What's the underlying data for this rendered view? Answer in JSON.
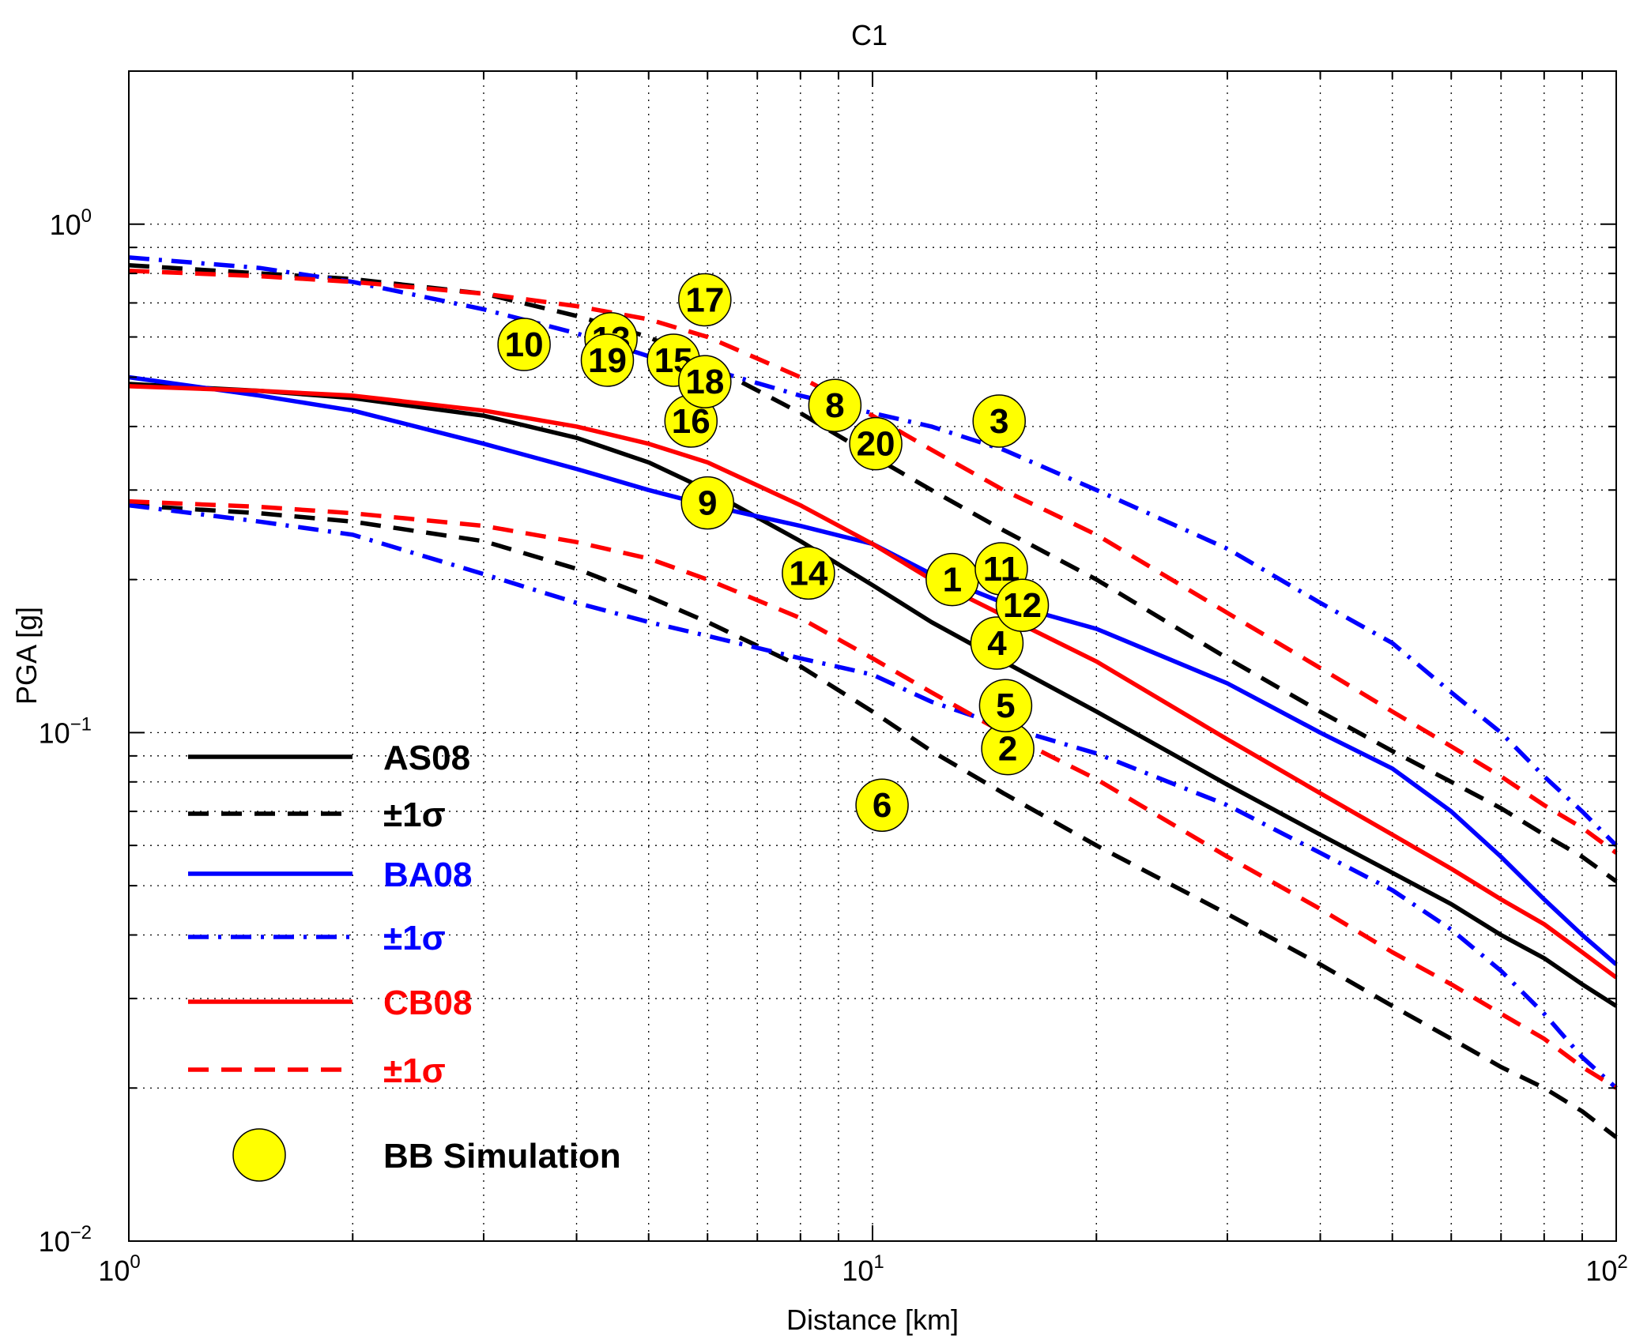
{
  "chart_data": {
    "type": "line",
    "title": "C1",
    "xlabel": "Distance [km]",
    "ylabel": "PGA [g]",
    "xscale": "log",
    "yscale": "log",
    "xlim": [
      1,
      100
    ],
    "ylim": [
      0.01,
      2
    ],
    "grid": true,
    "legend_position": "bottom-left",
    "x_tick_labels": [
      {
        "value": 1,
        "base": "10",
        "exp": "0"
      },
      {
        "value": 10,
        "base": "10",
        "exp": "1"
      },
      {
        "value": 100,
        "base": "10",
        "exp": "2"
      }
    ],
    "y_tick_labels": [
      {
        "value": 0.01,
        "base": "10",
        "exp": "−2"
      },
      {
        "value": 0.1,
        "base": "10",
        "exp": "−1"
      },
      {
        "value": 1,
        "base": "10",
        "exp": "0"
      }
    ],
    "x": [
      1,
      1.5,
      2,
      3,
      4,
      5,
      6,
      8,
      10,
      12,
      15,
      20,
      30,
      40,
      50,
      60,
      70,
      80,
      90,
      100
    ],
    "series": [
      {
        "name": "AS08",
        "color": "#000000",
        "style": "solid",
        "values": [
          0.485,
          0.47,
          0.455,
          0.42,
          0.38,
          0.34,
          0.3,
          0.238,
          0.195,
          0.165,
          0.138,
          0.11,
          0.079,
          0.063,
          0.053,
          0.046,
          0.04,
          0.036,
          0.032,
          0.029
        ]
      },
      {
        "name": "±1σ",
        "color": "#000000",
        "style": "dashed",
        "values": [
          0.83,
          0.8,
          0.78,
          0.73,
          0.66,
          0.6,
          0.53,
          0.425,
          0.35,
          0.3,
          0.25,
          0.2,
          0.14,
          0.11,
          0.092,
          0.08,
          0.071,
          0.063,
          0.057,
          0.051
        ]
      },
      {
        "name": "±1σ",
        "color": "#000000",
        "style": "dashed",
        "values": [
          0.28,
          0.27,
          0.26,
          0.238,
          0.21,
          0.185,
          0.165,
          0.135,
          0.11,
          0.092,
          0.076,
          0.06,
          0.044,
          0.035,
          0.029,
          0.025,
          0.022,
          0.02,
          0.018,
          0.016
        ]
      },
      {
        "name": "BA08",
        "color": "#0000ff",
        "style": "solid",
        "values": [
          0.5,
          0.46,
          0.43,
          0.37,
          0.33,
          0.3,
          0.28,
          0.255,
          0.235,
          0.205,
          0.18,
          0.16,
          0.125,
          0.1,
          0.085,
          0.07,
          0.057,
          0.047,
          0.04,
          0.035
        ]
      },
      {
        "name": "±1σ",
        "color": "#0000ff",
        "style": "dashdot",
        "values": [
          0.86,
          0.82,
          0.77,
          0.68,
          0.61,
          0.55,
          0.52,
          0.46,
          0.425,
          0.4,
          0.36,
          0.3,
          0.23,
          0.18,
          0.15,
          0.12,
          0.1,
          0.082,
          0.07,
          0.06
        ]
      },
      {
        "name": "±1σ",
        "color": "#0000ff",
        "style": "dashdot",
        "values": [
          0.28,
          0.26,
          0.245,
          0.205,
          0.18,
          0.165,
          0.155,
          0.14,
          0.13,
          0.115,
          0.103,
          0.091,
          0.072,
          0.058,
          0.049,
          0.041,
          0.034,
          0.028,
          0.023,
          0.02
        ]
      },
      {
        "name": "CB08",
        "color": "#ff0000",
        "style": "solid",
        "values": [
          0.48,
          0.47,
          0.46,
          0.43,
          0.4,
          0.37,
          0.34,
          0.28,
          0.235,
          0.2,
          0.17,
          0.138,
          0.097,
          0.076,
          0.063,
          0.054,
          0.047,
          0.042,
          0.037,
          0.033
        ]
      },
      {
        "name": "±1σ",
        "color": "#ff0000",
        "style": "dashed",
        "values": [
          0.81,
          0.79,
          0.77,
          0.73,
          0.69,
          0.65,
          0.6,
          0.5,
          0.42,
          0.36,
          0.3,
          0.245,
          0.172,
          0.134,
          0.11,
          0.094,
          0.082,
          0.072,
          0.065,
          0.058
        ]
      },
      {
        "name": "±1σ",
        "color": "#ff0000",
        "style": "dashed",
        "values": [
          0.285,
          0.278,
          0.27,
          0.255,
          0.237,
          0.22,
          0.2,
          0.168,
          0.14,
          0.12,
          0.1,
          0.081,
          0.057,
          0.045,
          0.037,
          0.032,
          0.028,
          0.025,
          0.022,
          0.02
        ]
      }
    ],
    "scatter_series": {
      "name": "BB Simulation",
      "color": "#ffff00",
      "points": [
        {
          "label": "1",
          "x": 12.8,
          "y": 0.2
        },
        {
          "label": "2",
          "x": 15.2,
          "y": 0.093
        },
        {
          "label": "3",
          "x": 14.8,
          "y": 0.41
        },
        {
          "label": "4",
          "x": 14.7,
          "y": 0.15
        },
        {
          "label": "5",
          "x": 15.1,
          "y": 0.113
        },
        {
          "label": "6",
          "x": 10.3,
          "y": 0.072
        },
        {
          "label": "8",
          "x": 8.9,
          "y": 0.44
        },
        {
          "label": "9",
          "x": 6.0,
          "y": 0.283
        },
        {
          "label": "10",
          "x": 3.4,
          "y": 0.58
        },
        {
          "label": "11",
          "x": 14.9,
          "y": 0.21
        },
        {
          "label": "12",
          "x": 15.9,
          "y": 0.178
        },
        {
          "label": "13",
          "x": 4.45,
          "y": 0.595
        },
        {
          "label": "14",
          "x": 8.2,
          "y": 0.206
        },
        {
          "label": "15",
          "x": 5.4,
          "y": 0.54
        },
        {
          "label": "16",
          "x": 5.7,
          "y": 0.41
        },
        {
          "label": "17",
          "x": 5.95,
          "y": 0.71
        },
        {
          "label": "18",
          "x": 5.95,
          "y": 0.49
        },
        {
          "label": "19",
          "x": 4.4,
          "y": 0.54
        },
        {
          "label": "20",
          "x": 10.1,
          "y": 0.37
        }
      ]
    },
    "legend": [
      {
        "label": "AS08",
        "color": "#000000",
        "text_color": "#000000",
        "style": "solid"
      },
      {
        "label": "±1σ",
        "color": "#000000",
        "text_color": "#000000",
        "style": "dashed"
      },
      {
        "label": "BA08",
        "color": "#0000ff",
        "text_color": "#0000ff",
        "style": "solid"
      },
      {
        "label": "±1σ",
        "color": "#0000ff",
        "text_color": "#0000ff",
        "style": "dashdot"
      },
      {
        "label": "CB08",
        "color": "#ff0000",
        "text_color": "#ff0000",
        "style": "solid"
      },
      {
        "label": "±1σ",
        "color": "#ff0000",
        "text_color": "#ff0000",
        "style": "dashed"
      },
      {
        "label": "BB Simulation",
        "color": "#ffff00",
        "text_color": "#000000",
        "style": "marker"
      }
    ]
  }
}
